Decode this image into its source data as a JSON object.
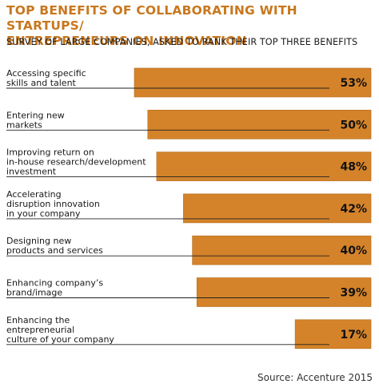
{
  "title_line1": "TOP BENEFITS OF COLLABORATING WITH STARTUPS/",
  "title_line2": "ENTREPRENEURS ON INNOVATION",
  "subtitle": "SURVEY OF LARGE COMPANIES, ASKED TO RANK THEIR TOP THREE BENEFITS",
  "source": "Source: Accenture 2015",
  "colors": {
    "title": "#c8771e",
    "bar": "#d4832a",
    "bar_edge": "#b56c1c",
    "leader_line": "#222222"
  },
  "chart_data": {
    "type": "bar",
    "orientation": "horizontal",
    "categories": [
      [
        "Accessing specific",
        "skills and talent"
      ],
      [
        "Entering new",
        "markets"
      ],
      [
        "Improving return on",
        "in-house research/development",
        "investment"
      ],
      [
        "Accelerating",
        "disruption innovation",
        "in your company"
      ],
      [
        "Designing new",
        "products and services"
      ],
      [
        "Enhancing company’s",
        "brand/image"
      ],
      [
        "Enhancing the",
        "entrepreneurial",
        "culture of your company"
      ]
    ],
    "values": [
      53,
      50,
      48,
      42,
      40,
      39,
      17
    ],
    "value_labels": [
      "53%",
      "50%",
      "48%",
      "42%",
      "40%",
      "39%",
      "17%"
    ],
    "xlim": [
      0,
      53
    ],
    "grid": false,
    "legend": false
  }
}
